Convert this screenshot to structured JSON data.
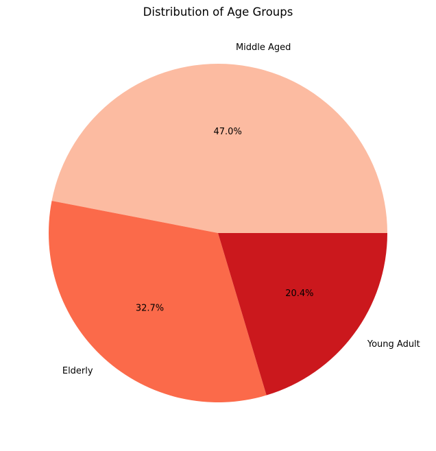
{
  "chart_data": {
    "type": "pie",
    "title": "Distribution of Age Groups",
    "start_angle_deg": 0,
    "direction": "counterclockwise",
    "slices": [
      {
        "label": "Middle Aged",
        "value": 47.0,
        "pct_text": "47.0%",
        "color": "#fcbba1"
      },
      {
        "label": "Elderly",
        "value": 32.7,
        "pct_text": "32.7%",
        "color": "#fb6a4a"
      },
      {
        "label": "Young Adult",
        "value": 20.4,
        "pct_text": "20.4%",
        "color": "#cb181d"
      }
    ]
  }
}
